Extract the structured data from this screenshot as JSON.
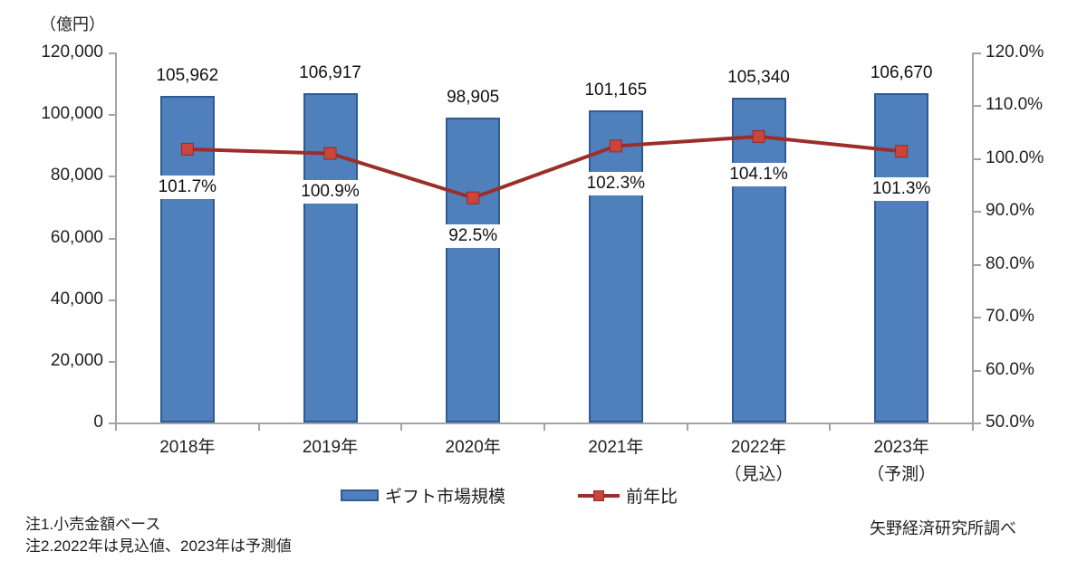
{
  "chart_data": {
    "type": "bar",
    "subtype": "bar-line-combo",
    "title": "",
    "unit_label": "（億円）",
    "grid": false,
    "legend_position": "bottom-center",
    "categories": [
      {
        "lines": [
          "2018年"
        ]
      },
      {
        "lines": [
          "2019年"
        ]
      },
      {
        "lines": [
          "2020年"
        ]
      },
      {
        "lines": [
          "2021年"
        ]
      },
      {
        "lines": [
          "2022年",
          "（見込）"
        ]
      },
      {
        "lines": [
          "2023年",
          "（予測）"
        ]
      }
    ],
    "series": [
      {
        "name": "ギフト市場規模",
        "type": "bar",
        "axis": "left",
        "values": [
          105962,
          106917,
          98905,
          101165,
          105340,
          106670
        ],
        "value_labels": [
          "105,962",
          "106,917",
          "98,905",
          "101,165",
          "105,340",
          "106,670"
        ],
        "fill_color": "#4f80bc",
        "border_color": "#2e5b93"
      },
      {
        "name": "前年比",
        "type": "line",
        "axis": "right",
        "values": [
          101.7,
          100.9,
          92.5,
          102.3,
          104.1,
          101.3
        ],
        "value_labels": [
          "101.7%",
          "100.9%",
          "92.5%",
          "102.3%",
          "104.1%",
          "101.3%"
        ],
        "line_color": "#9c2e2a",
        "marker_color": "#cb453d",
        "marker_border_color": "#8f2b26"
      }
    ],
    "left_axis": {
      "min": 0,
      "max": 120000,
      "step": 20000,
      "tick_labels": [
        "120,000",
        "100,000",
        "80,000",
        "60,000",
        "40,000",
        "20,000",
        "0"
      ]
    },
    "right_axis": {
      "min": 50,
      "max": 120,
      "step": 10,
      "tick_labels": [
        "120.0%",
        "110.0%",
        "100.0%",
        "90.0%",
        "80.0%",
        "70.0%",
        "60.0%",
        "50.0%"
      ]
    },
    "notes": [
      "注1.小売金額ベース",
      "注2.2022年は見込値、2023年は予測値"
    ],
    "source": "矢野経済研究所調べ"
  }
}
